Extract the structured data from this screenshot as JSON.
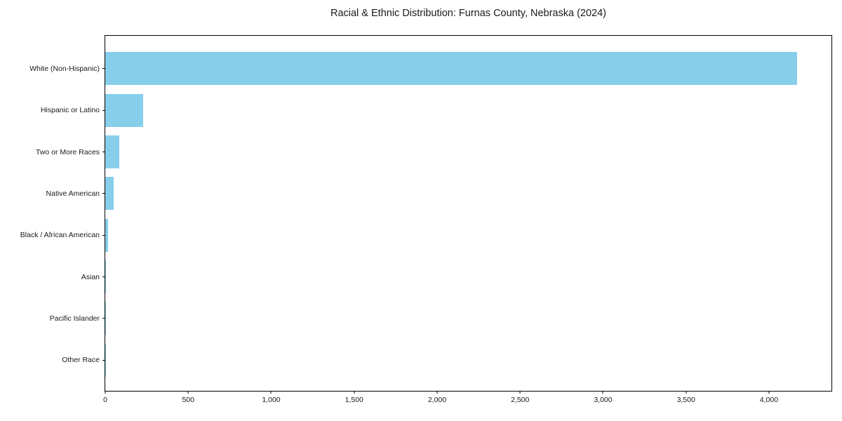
{
  "chart_data": {
    "type": "bar",
    "orientation": "horizontal",
    "title": "Racial & Ethnic Distribution: Furnas County, Nebraska (2024)",
    "categories": [
      "White (Non-Hispanic)",
      "Hispanic or Latino",
      "Two or More Races",
      "Native American",
      "Black / African American",
      "Asian",
      "Pacific Islander",
      "Other Race"
    ],
    "values": [
      4170,
      227,
      85,
      50,
      15,
      5,
      2,
      1
    ],
    "xlabel": "",
    "ylabel": "",
    "xlim": [
      0,
      4385
    ],
    "x_ticks": [
      0,
      500,
      1000,
      1500,
      2000,
      2500,
      3000,
      3500,
      4000
    ],
    "x_tick_labels": [
      "0",
      "500",
      "1,000",
      "1,500",
      "2,000",
      "2,500",
      "3,000",
      "3,500",
      "4,000"
    ],
    "grid": false,
    "legend": null,
    "bar_color": "#87CEEB",
    "spine_color": "#000000",
    "text_color": "#1a1a1a",
    "background_color": "#ffffff"
  }
}
